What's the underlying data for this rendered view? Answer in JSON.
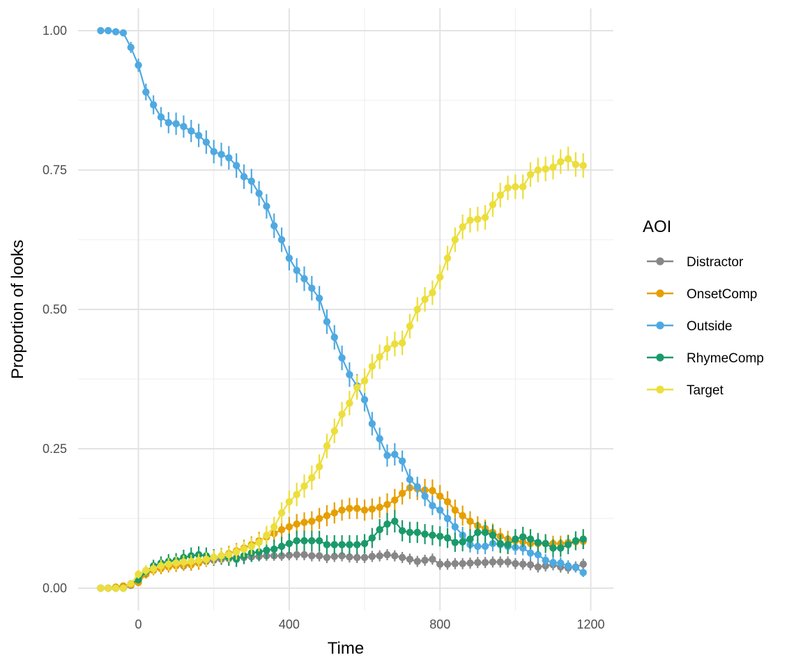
{
  "chart_data": {
    "type": "line",
    "xlabel": "Time",
    "ylabel": "Proportion of looks",
    "xlim": [
      -160,
      1260
    ],
    "ylim": [
      -0.04,
      1.04
    ],
    "x_ticks": [
      0,
      400,
      800,
      1200
    ],
    "x_tick_labels": [
      "0",
      "400",
      "800",
      "1200"
    ],
    "y_ticks": [
      0,
      0.25,
      0.5,
      0.75,
      1
    ],
    "y_tick_labels": [
      "0.00",
      "0.25",
      "0.50",
      "0.75",
      "1.00"
    ],
    "grid": true,
    "legend": {
      "title": "AOI",
      "position": "right"
    },
    "x": [
      -100,
      -80,
      -60,
      -40,
      -20,
      0,
      20,
      40,
      60,
      80,
      100,
      120,
      140,
      160,
      180,
      200,
      220,
      240,
      260,
      280,
      300,
      320,
      340,
      360,
      380,
      400,
      420,
      440,
      460,
      480,
      500,
      520,
      540,
      560,
      580,
      600,
      620,
      640,
      660,
      680,
      700,
      720,
      740,
      760,
      780,
      800,
      820,
      840,
      860,
      880,
      900,
      920,
      940,
      960,
      980,
      1000,
      1020,
      1040,
      1060,
      1080,
      1100,
      1120,
      1140,
      1160,
      1180
    ],
    "series": [
      {
        "name": "Distractor",
        "color": "#878787",
        "values": [
          0,
          0,
          0,
          0,
          0.005,
          0.015,
          0.025,
          0.033,
          0.038,
          0.04,
          0.041,
          0.04,
          0.042,
          0.045,
          0.048,
          0.05,
          0.052,
          0.053,
          0.055,
          0.055,
          0.056,
          0.057,
          0.058,
          0.058,
          0.058,
          0.059,
          0.06,
          0.06,
          0.058,
          0.058,
          0.055,
          0.057,
          0.058,
          0.056,
          0.055,
          0.055,
          0.057,
          0.058,
          0.06,
          0.058,
          0.055,
          0.052,
          0.048,
          0.05,
          0.052,
          0.043,
          0.043,
          0.044,
          0.044,
          0.045,
          0.046,
          0.046,
          0.047,
          0.047,
          0.047,
          0.044,
          0.043,
          0.042,
          0.038,
          0.04,
          0.042,
          0.038,
          0.036,
          0.038,
          0.043
        ],
        "errors": [
          0,
          0,
          0,
          0,
          0.003,
          0.005,
          0.006,
          0.007,
          0.008,
          0.008,
          0.008,
          0.008,
          0.008,
          0.008,
          0.008,
          0.009,
          0.009,
          0.009,
          0.009,
          0.009,
          0.009,
          0.009,
          0.009,
          0.009,
          0.009,
          0.009,
          0.01,
          0.01,
          0.01,
          0.01,
          0.01,
          0.01,
          0.01,
          0.01,
          0.01,
          0.01,
          0.01,
          0.01,
          0.01,
          0.01,
          0.01,
          0.01,
          0.01,
          0.01,
          0.01,
          0.01,
          0.01,
          0.01,
          0.01,
          0.01,
          0.01,
          0.01,
          0.01,
          0.01,
          0.01,
          0.01,
          0.01,
          0.01,
          0.01,
          0.01,
          0.01,
          0.01,
          0.01,
          0.01,
          0.01
        ]
      },
      {
        "name": "OnsetComp",
        "color": "#E69F00",
        "values": [
          0,
          0,
          0.002,
          0.004,
          0.006,
          0.01,
          0.025,
          0.032,
          0.035,
          0.038,
          0.04,
          0.042,
          0.042,
          0.045,
          0.05,
          0.055,
          0.058,
          0.062,
          0.067,
          0.072,
          0.078,
          0.085,
          0.092,
          0.098,
          0.105,
          0.11,
          0.115,
          0.118,
          0.12,
          0.125,
          0.13,
          0.135,
          0.14,
          0.143,
          0.143,
          0.14,
          0.142,
          0.145,
          0.15,
          0.158,
          0.17,
          0.18,
          0.178,
          0.176,
          0.175,
          0.165,
          0.155,
          0.14,
          0.13,
          0.12,
          0.112,
          0.107,
          0.1,
          0.093,
          0.088,
          0.085,
          0.083,
          0.08,
          0.08,
          0.08,
          0.08,
          0.08,
          0.082,
          0.083,
          0.084
        ],
        "errors": [
          0,
          0,
          0.003,
          0.004,
          0.005,
          0.006,
          0.008,
          0.009,
          0.01,
          0.01,
          0.011,
          0.011,
          0.011,
          0.012,
          0.012,
          0.013,
          0.013,
          0.014,
          0.014,
          0.015,
          0.015,
          0.016,
          0.016,
          0.017,
          0.017,
          0.018,
          0.018,
          0.018,
          0.018,
          0.019,
          0.019,
          0.019,
          0.019,
          0.019,
          0.019,
          0.019,
          0.019,
          0.019,
          0.02,
          0.02,
          0.02,
          0.02,
          0.02,
          0.02,
          0.02,
          0.02,
          0.019,
          0.019,
          0.018,
          0.018,
          0.017,
          0.016,
          0.016,
          0.015,
          0.015,
          0.015,
          0.014,
          0.014,
          0.014,
          0.014,
          0.014,
          0.014,
          0.014,
          0.014,
          0.014
        ]
      },
      {
        "name": "Outside",
        "color": "#4FA9E1",
        "values": [
          1.0,
          1.0,
          0.998,
          0.996,
          0.97,
          0.938,
          0.89,
          0.867,
          0.845,
          0.835,
          0.833,
          0.828,
          0.82,
          0.812,
          0.8,
          0.783,
          0.778,
          0.772,
          0.758,
          0.738,
          0.73,
          0.708,
          0.685,
          0.65,
          0.625,
          0.592,
          0.57,
          0.555,
          0.538,
          0.52,
          0.478,
          0.45,
          0.413,
          0.383,
          0.363,
          0.338,
          0.295,
          0.268,
          0.238,
          0.24,
          0.228,
          0.195,
          0.182,
          0.165,
          0.148,
          0.14,
          0.125,
          0.11,
          0.095,
          0.078,
          0.075,
          0.075,
          0.08,
          0.078,
          0.075,
          0.073,
          0.072,
          0.063,
          0.06,
          0.05,
          0.046,
          0.045,
          0.04,
          0.037,
          0.028
        ],
        "errors": [
          0,
          0,
          0.003,
          0.004,
          0.01,
          0.012,
          0.015,
          0.017,
          0.018,
          0.019,
          0.02,
          0.02,
          0.02,
          0.021,
          0.021,
          0.021,
          0.021,
          0.021,
          0.022,
          0.022,
          0.022,
          0.022,
          0.022,
          0.022,
          0.022,
          0.022,
          0.022,
          0.022,
          0.022,
          0.022,
          0.022,
          0.022,
          0.022,
          0.022,
          0.021,
          0.021,
          0.021,
          0.02,
          0.02,
          0.02,
          0.019,
          0.019,
          0.018,
          0.018,
          0.017,
          0.017,
          0.016,
          0.015,
          0.015,
          0.014,
          0.014,
          0.014,
          0.014,
          0.014,
          0.013,
          0.013,
          0.013,
          0.012,
          0.012,
          0.011,
          0.011,
          0.01,
          0.01,
          0.009,
          0.008
        ]
      },
      {
        "name": "RhymeComp",
        "color": "#1A9A6A",
        "values": [
          0,
          0,
          0,
          0,
          0.008,
          0.015,
          0.03,
          0.04,
          0.045,
          0.048,
          0.05,
          0.055,
          0.058,
          0.06,
          0.058,
          0.055,
          0.057,
          0.055,
          0.052,
          0.058,
          0.063,
          0.065,
          0.068,
          0.07,
          0.075,
          0.08,
          0.085,
          0.085,
          0.085,
          0.085,
          0.078,
          0.078,
          0.078,
          0.078,
          0.078,
          0.08,
          0.09,
          0.105,
          0.115,
          0.12,
          0.103,
          0.1,
          0.1,
          0.097,
          0.095,
          0.093,
          0.09,
          0.082,
          0.083,
          0.088,
          0.1,
          0.1,
          0.095,
          0.08,
          0.078,
          0.088,
          0.092,
          0.088,
          0.082,
          0.08,
          0.072,
          0.072,
          0.078,
          0.085,
          0.088
        ],
        "errors": [
          0,
          0,
          0,
          0,
          0.004,
          0.006,
          0.009,
          0.011,
          0.012,
          0.013,
          0.013,
          0.014,
          0.015,
          0.015,
          0.015,
          0.015,
          0.015,
          0.015,
          0.014,
          0.015,
          0.016,
          0.016,
          0.016,
          0.017,
          0.017,
          0.018,
          0.018,
          0.018,
          0.018,
          0.018,
          0.017,
          0.017,
          0.017,
          0.017,
          0.017,
          0.017,
          0.018,
          0.019,
          0.02,
          0.02,
          0.019,
          0.019,
          0.019,
          0.018,
          0.018,
          0.018,
          0.018,
          0.017,
          0.017,
          0.018,
          0.019,
          0.019,
          0.018,
          0.017,
          0.017,
          0.018,
          0.018,
          0.018,
          0.017,
          0.017,
          0.016,
          0.016,
          0.017,
          0.017,
          0.018
        ]
      },
      {
        "name": "Target",
        "color": "#ECDE3B",
        "values": [
          0,
          0,
          0,
          0,
          0.008,
          0.025,
          0.032,
          0.035,
          0.04,
          0.043,
          0.045,
          0.047,
          0.048,
          0.05,
          0.052,
          0.055,
          0.058,
          0.06,
          0.065,
          0.07,
          0.075,
          0.082,
          0.095,
          0.11,
          0.135,
          0.155,
          0.168,
          0.183,
          0.198,
          0.218,
          0.255,
          0.282,
          0.312,
          0.332,
          0.36,
          0.372,
          0.398,
          0.415,
          0.43,
          0.438,
          0.44,
          0.47,
          0.5,
          0.518,
          0.53,
          0.558,
          0.592,
          0.625,
          0.648,
          0.66,
          0.662,
          0.665,
          0.688,
          0.705,
          0.718,
          0.72,
          0.72,
          0.742,
          0.75,
          0.752,
          0.755,
          0.765,
          0.77,
          0.76,
          0.758
        ],
        "errors": [
          0,
          0,
          0,
          0,
          0.004,
          0.008,
          0.009,
          0.01,
          0.011,
          0.011,
          0.012,
          0.012,
          0.012,
          0.012,
          0.012,
          0.013,
          0.013,
          0.013,
          0.014,
          0.014,
          0.015,
          0.016,
          0.017,
          0.018,
          0.019,
          0.02,
          0.021,
          0.021,
          0.022,
          0.022,
          0.022,
          0.022,
          0.022,
          0.022,
          0.022,
          0.022,
          0.022,
          0.022,
          0.022,
          0.022,
          0.022,
          0.022,
          0.022,
          0.022,
          0.022,
          0.022,
          0.022,
          0.022,
          0.022,
          0.022,
          0.022,
          0.022,
          0.022,
          0.022,
          0.022,
          0.022,
          0.022,
          0.022,
          0.022,
          0.022,
          0.022,
          0.022,
          0.022,
          0.022,
          0.022
        ]
      }
    ]
  }
}
